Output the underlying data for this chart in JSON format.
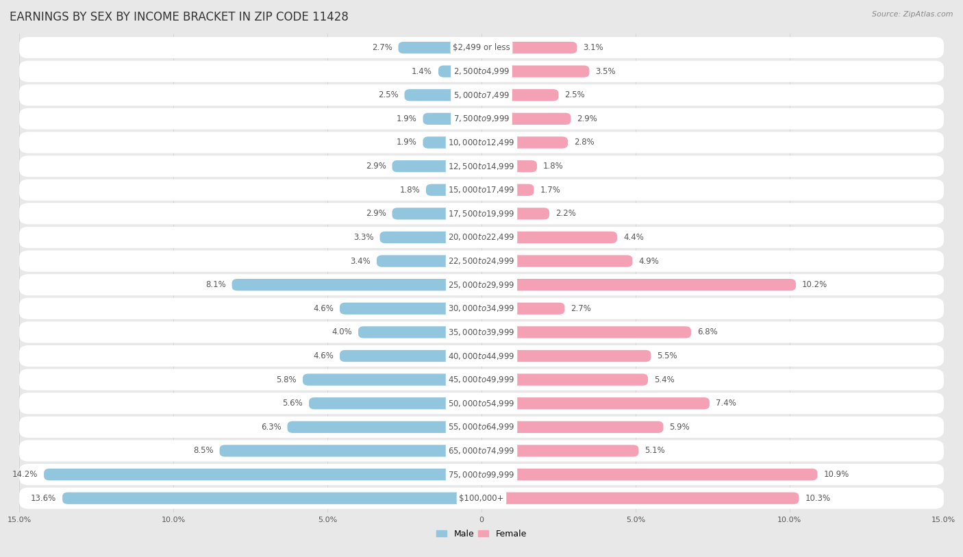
{
  "title": "EARNINGS BY SEX BY INCOME BRACKET IN ZIP CODE 11428",
  "source": "Source: ZipAtlas.com",
  "categories": [
    "$2,499 or less",
    "$2,500 to $4,999",
    "$5,000 to $7,499",
    "$7,500 to $9,999",
    "$10,000 to $12,499",
    "$12,500 to $14,999",
    "$15,000 to $17,499",
    "$17,500 to $19,999",
    "$20,000 to $22,499",
    "$22,500 to $24,999",
    "$25,000 to $29,999",
    "$30,000 to $34,999",
    "$35,000 to $39,999",
    "$40,000 to $44,999",
    "$45,000 to $49,999",
    "$50,000 to $54,999",
    "$55,000 to $64,999",
    "$65,000 to $74,999",
    "$75,000 to $99,999",
    "$100,000+"
  ],
  "male_values": [
    2.7,
    1.4,
    2.5,
    1.9,
    1.9,
    2.9,
    1.8,
    2.9,
    3.3,
    3.4,
    8.1,
    4.6,
    4.0,
    4.6,
    5.8,
    5.6,
    6.3,
    8.5,
    14.2,
    13.6
  ],
  "female_values": [
    3.1,
    3.5,
    2.5,
    2.9,
    2.8,
    1.8,
    1.7,
    2.2,
    4.4,
    4.9,
    10.2,
    2.7,
    6.8,
    5.5,
    5.4,
    7.4,
    5.9,
    5.1,
    10.9,
    10.3
  ],
  "male_color": "#92c5de",
  "female_color": "#f4a0b5",
  "male_label": "Male",
  "female_label": "Female",
  "xlim": 15.0,
  "bg_color": "#e8e8e8",
  "row_color": "#ffffff",
  "title_fontsize": 12,
  "label_fontsize": 8.5,
  "value_fontsize": 8.5,
  "source_fontsize": 8
}
